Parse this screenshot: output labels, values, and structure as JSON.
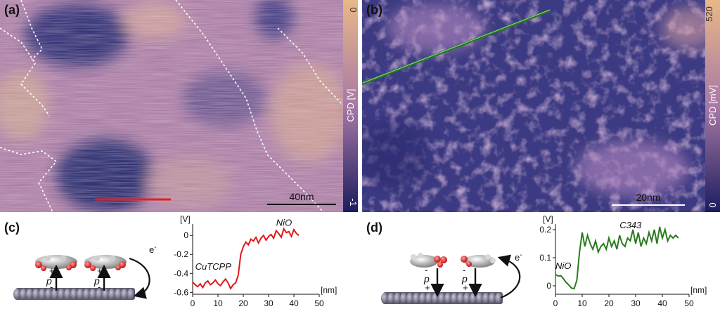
{
  "panels": {
    "a": {
      "label": "(a)",
      "colorbar_max": "0",
      "colorbar_min": "-1",
      "colorbar_title": "CPD [V]",
      "scalebar_label": "40nm"
    },
    "b": {
      "label": "(b)",
      "colorbar_max": "520",
      "colorbar_min": "0",
      "colorbar_title": "CPD [mV]",
      "scalebar_label": "20nm"
    },
    "c": {
      "label": "(c)",
      "sketch": {
        "charge_plus": "+",
        "charge_minus": "-",
        "dipole": "p",
        "electron": "e",
        "electron_sup": "-"
      }
    },
    "d": {
      "label": "(d)",
      "sketch": {
        "charge_plus": "+",
        "charge_minus": "-",
        "dipole": "p",
        "electron": "e",
        "electron_sup": "-"
      }
    }
  },
  "colors": {
    "map_low": "#1c1d5e",
    "map_mid": "#a878a6",
    "map_high": "#e8b887",
    "profile_c": "#e01818",
    "profile_d": "#2a7a1e",
    "line_a_marker": "#e02020",
    "line_b_marker": "#1f7a1f"
  },
  "chart_data": [
    {
      "type": "line",
      "panel": "c",
      "ylabel": "[V]",
      "xlabel": "[nm]",
      "xlim": [
        0,
        50
      ],
      "ylim": [
        -0.62,
        0.12
      ],
      "xticks": [
        0,
        10,
        20,
        30,
        40,
        50
      ],
      "yticks": [
        0,
        -0.2,
        -0.4,
        -0.6
      ],
      "ytick_labels": [
        "0",
        "-0.2",
        "-0.4",
        "-0.6"
      ],
      "annotations": [
        {
          "text": "NiO",
          "x": 33,
          "y": 0.1
        },
        {
          "text": "CuTCPP",
          "x": 1,
          "y": -0.36
        }
      ],
      "series": [
        {
          "x": [
            0,
            1,
            2,
            3,
            4,
            5,
            6,
            7,
            8,
            9,
            10,
            11,
            12,
            13,
            14,
            15,
            16,
            17,
            18,
            19,
            20,
            21,
            22,
            23,
            24,
            25,
            26,
            27,
            28,
            29,
            30,
            31,
            32,
            33,
            34,
            35,
            36,
            37,
            38,
            39,
            40,
            41,
            42
          ],
          "y": [
            -0.49,
            -0.52,
            -0.54,
            -0.51,
            -0.55,
            -0.5,
            -0.48,
            -0.52,
            -0.5,
            -0.47,
            -0.51,
            -0.53,
            -0.49,
            -0.46,
            -0.5,
            -0.56,
            -0.52,
            -0.5,
            -0.42,
            -0.2,
            -0.12,
            -0.07,
            -0.1,
            -0.04,
            -0.06,
            -0.02,
            -0.08,
            -0.03,
            0.0,
            -0.05,
            -0.01,
            0.01,
            -0.03,
            0.05,
            0.02,
            -0.02,
            0.07,
            0.03,
            0.04,
            -0.01,
            0.06,
            0.02,
            0.0
          ]
        }
      ]
    },
    {
      "type": "line",
      "panel": "d",
      "ylabel": "[V]",
      "xlabel": "[nm]",
      "xlim": [
        0,
        50
      ],
      "ylim": [
        -0.03,
        0.22
      ],
      "xticks": [
        0,
        10,
        20,
        30,
        40,
        50
      ],
      "yticks": [
        0,
        0.1,
        0.2
      ],
      "ytick_labels": [
        "0",
        "0.1",
        "0.2"
      ],
      "annotations": [
        {
          "text": "C343",
          "x": 24,
          "y": 0.205
        },
        {
          "text": "NiO",
          "x": 0,
          "y": 0.06
        }
      ],
      "series": [
        {
          "x": [
            0,
            1,
            2,
            3,
            4,
            5,
            6,
            7,
            8,
            9,
            10,
            11,
            12,
            13,
            14,
            15,
            16,
            17,
            18,
            19,
            20,
            21,
            22,
            23,
            24,
            25,
            26,
            27,
            28,
            29,
            30,
            31,
            32,
            33,
            34,
            35,
            36,
            37,
            38,
            39,
            40,
            41,
            42,
            43,
            44,
            45,
            46
          ],
          "y": [
            0.04,
            0.035,
            0.036,
            0.025,
            0.012,
            0.003,
            -0.008,
            -0.01,
            0.02,
            0.12,
            0.19,
            0.14,
            0.18,
            0.15,
            0.13,
            0.16,
            0.12,
            0.14,
            0.15,
            0.13,
            0.17,
            0.14,
            0.16,
            0.13,
            0.18,
            0.15,
            0.14,
            0.17,
            0.16,
            0.2,
            0.15,
            0.19,
            0.14,
            0.17,
            0.15,
            0.19,
            0.16,
            0.2,
            0.15,
            0.21,
            0.17,
            0.2,
            0.16,
            0.18,
            0.17,
            0.18,
            0.17
          ]
        }
      ]
    }
  ]
}
